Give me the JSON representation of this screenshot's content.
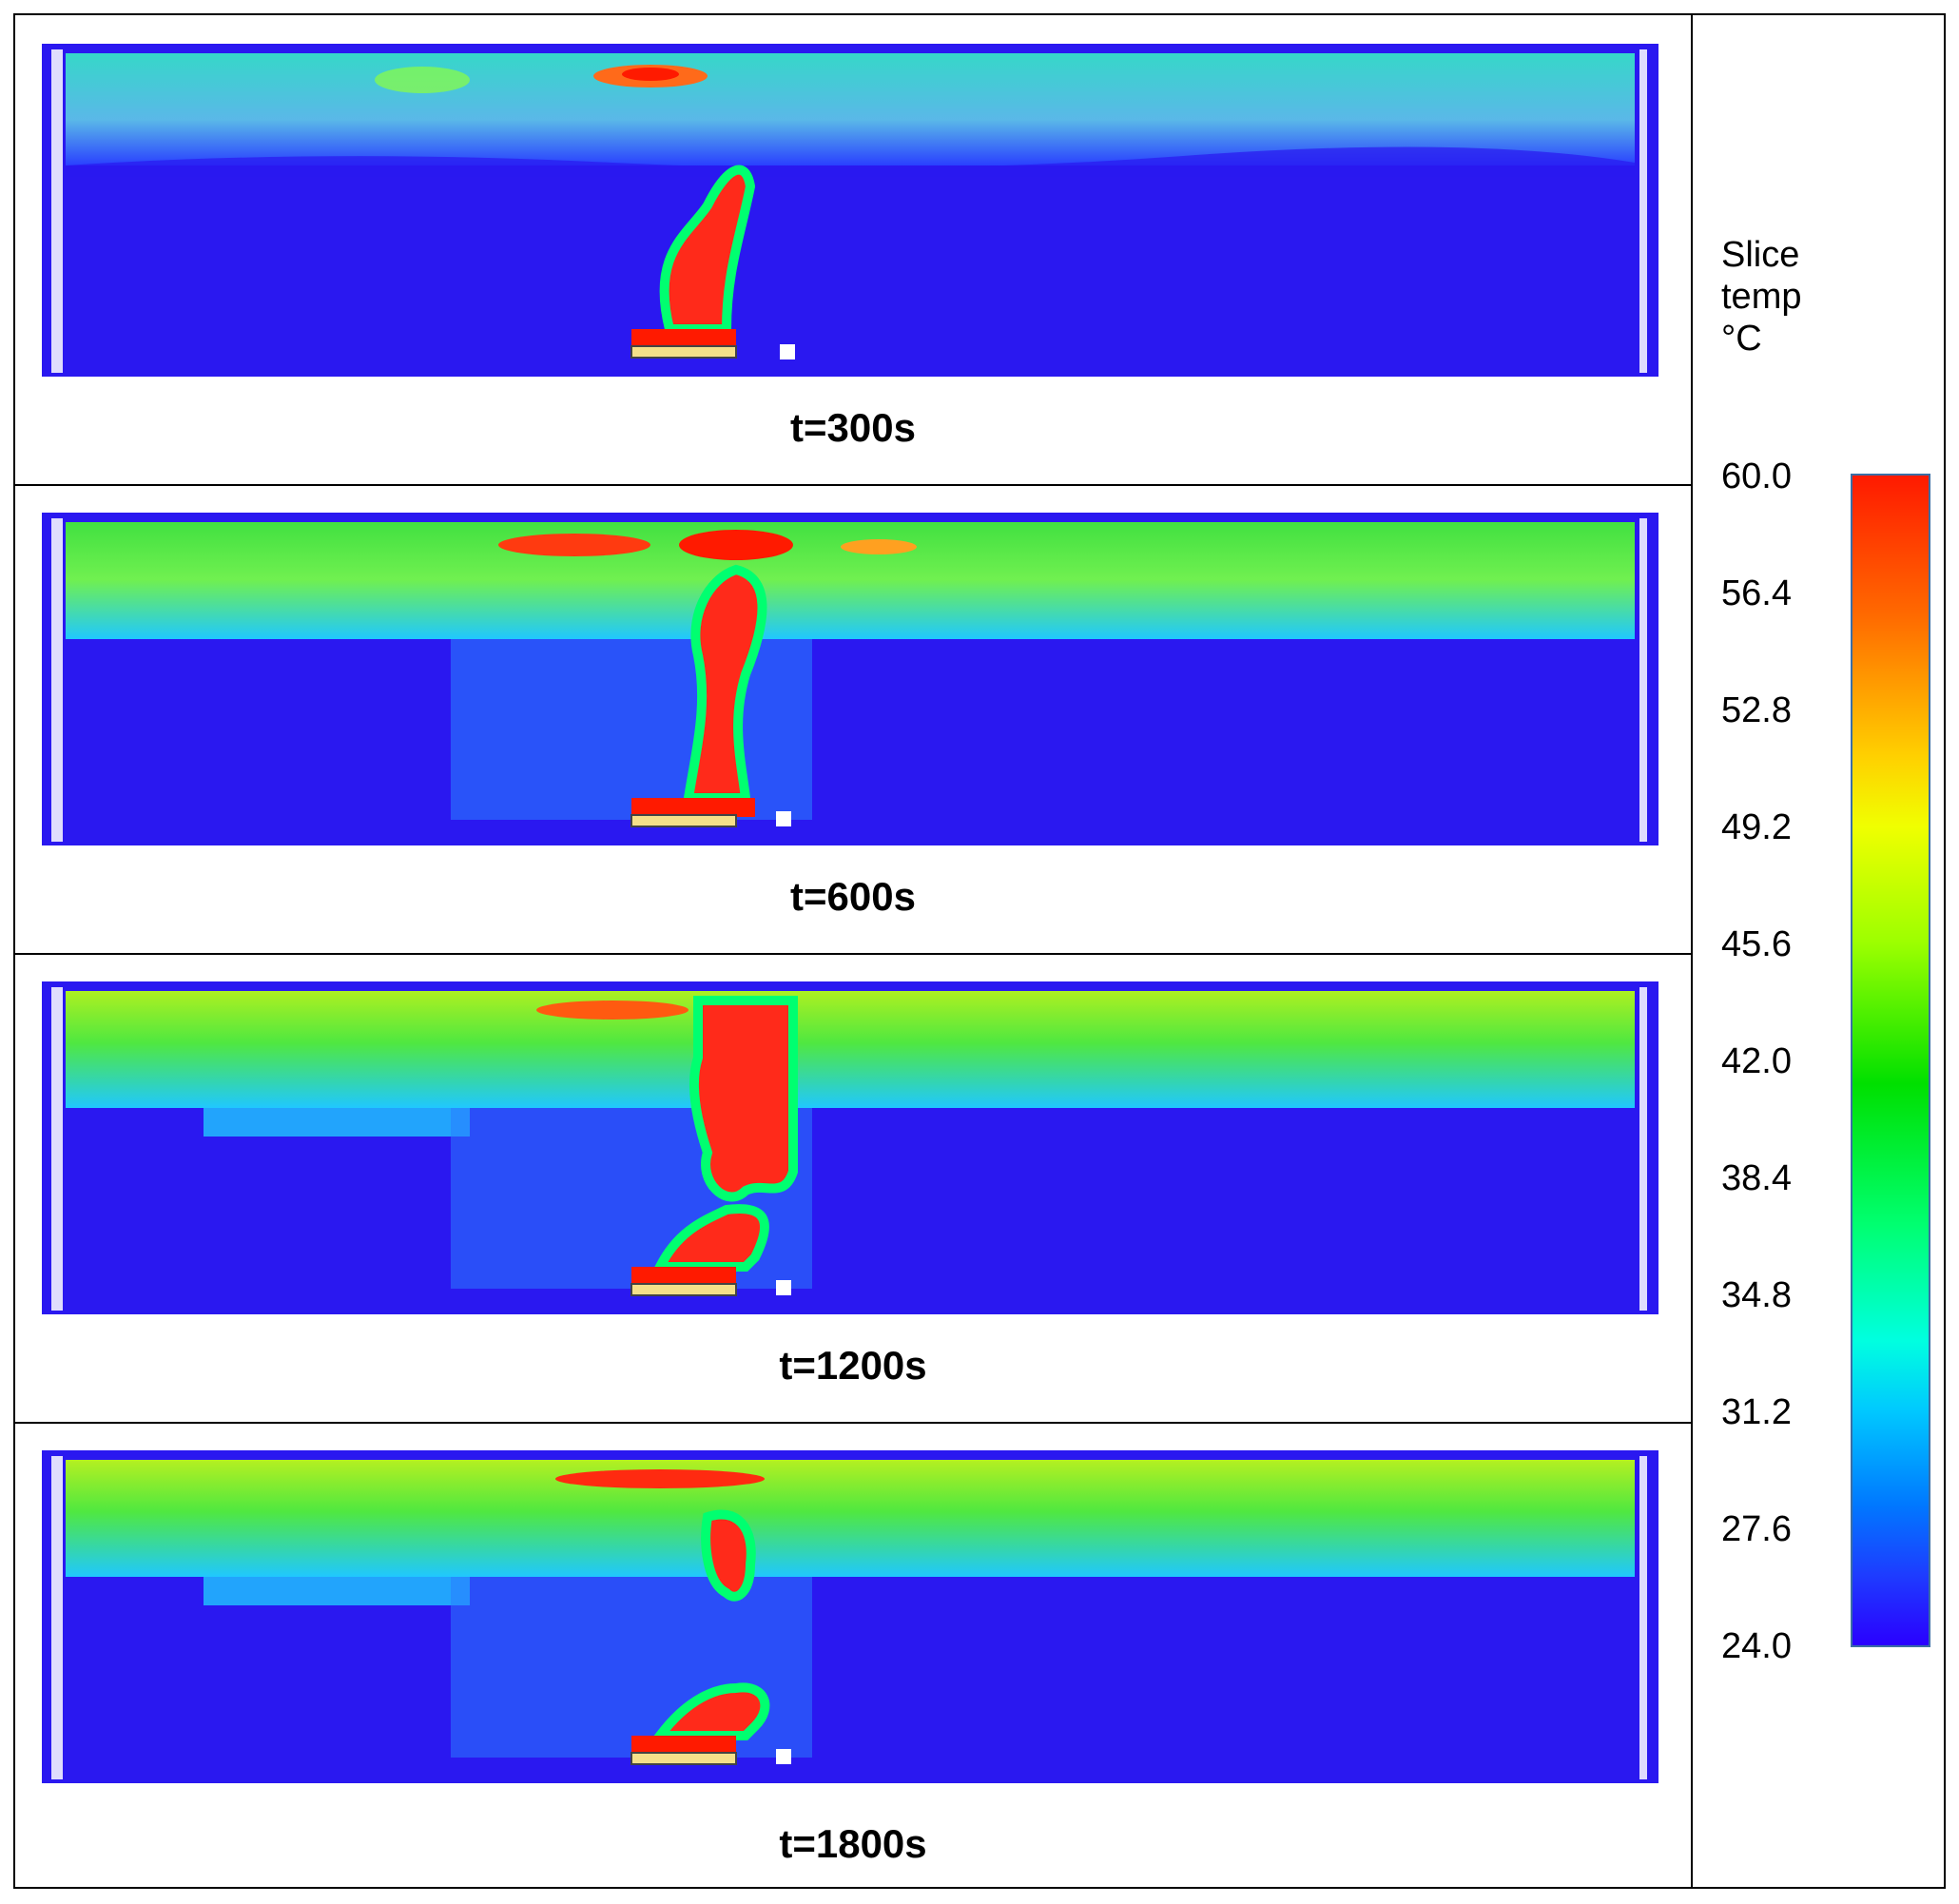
{
  "panels": [
    {
      "caption": "t=300s"
    },
    {
      "caption": "t=600s"
    },
    {
      "caption": "t=1200s"
    },
    {
      "caption": "t=1800s"
    }
  ],
  "legend": {
    "title": "Slice\ntemp\n°C",
    "ticks": [
      "60.0",
      "56.4",
      "52.8",
      "49.2",
      "45.6",
      "42.0",
      "38.4",
      "34.8",
      "31.2",
      "27.6",
      "24.0"
    ],
    "colors": {
      "min": "#2a00ff",
      "max": "#ff1a00"
    }
  }
}
